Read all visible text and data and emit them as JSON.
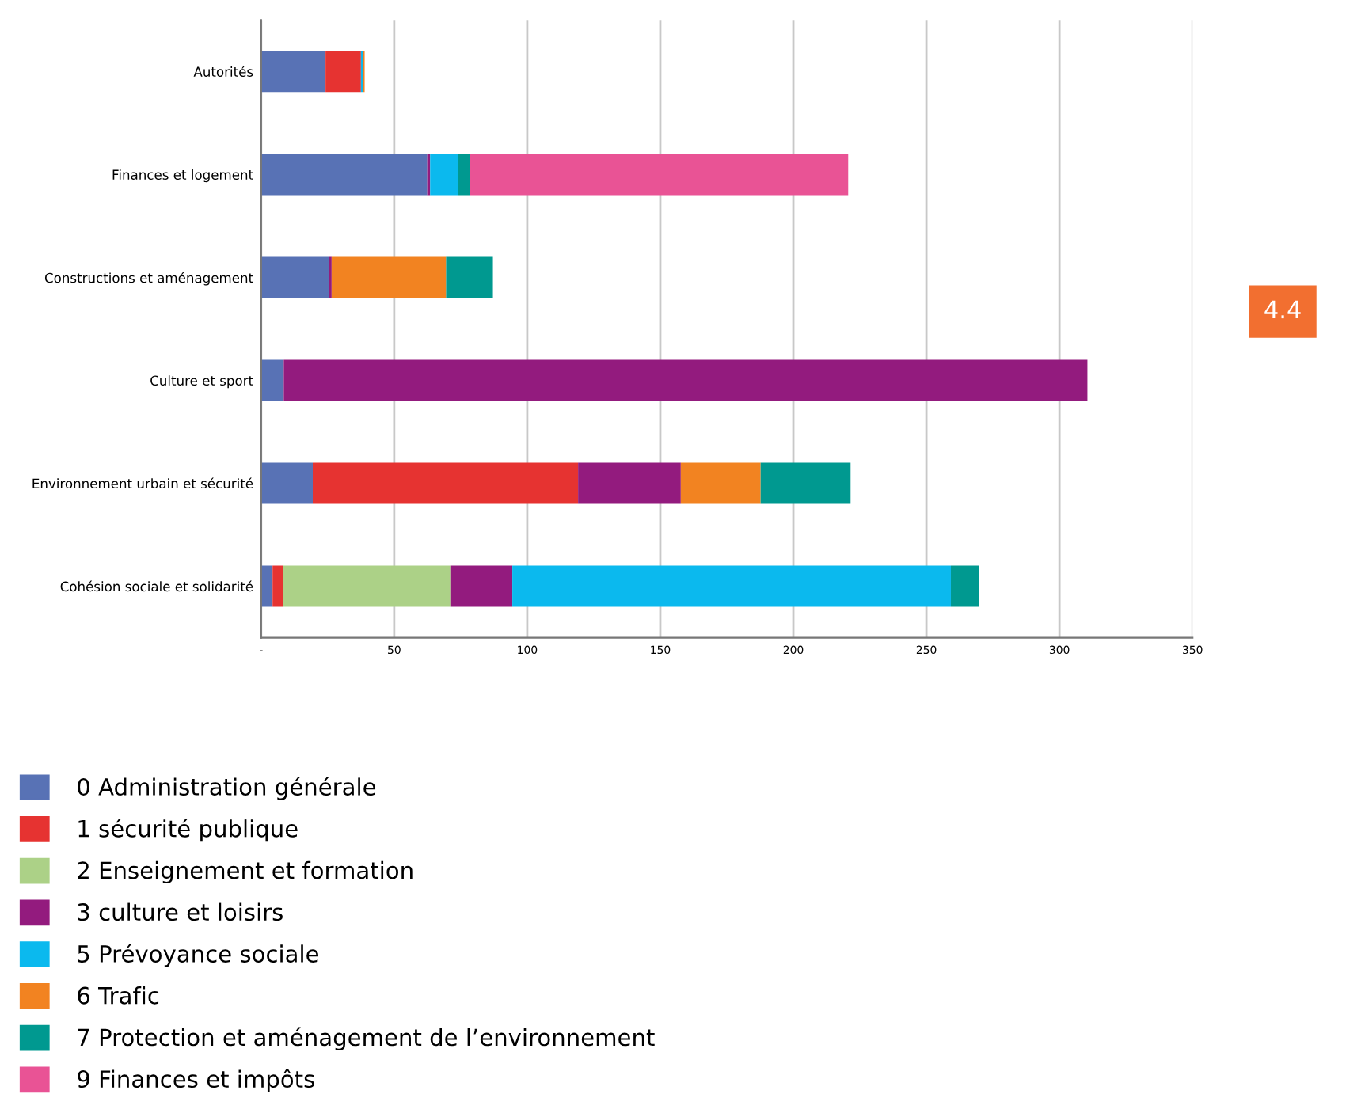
{
  "chart_data": {
    "type": "bar",
    "orientation": "horizontal",
    "stacked": true,
    "categories": [
      "Autorités",
      "Finances et logement",
      "Constructions et aménagement",
      "Culture et sport",
      "Environnement urbain et sécurité",
      "Cohésion sociale et solidarité"
    ],
    "series": [
      {
        "name": "0 Administration générale",
        "color": "#5872b5",
        "values": [
          24.2,
          62.4,
          25.4,
          8.5,
          19.4,
          4.3
        ]
      },
      {
        "name": "1 sécurité publique",
        "color": "#e63331",
        "values": [
          13.3,
          null,
          null,
          null,
          99.7,
          3.9
        ]
      },
      {
        "name": "2 Enseignement et formation",
        "color": "#acd187",
        "values": [
          null,
          null,
          null,
          null,
          null,
          62.9
        ]
      },
      {
        "name": "3 culture et loisirs",
        "color": "#931b7e",
        "values": [
          null,
          1.1,
          1.1,
          302,
          38.6,
          23.3
        ]
      },
      {
        "name": "5 Prévoyance sociale",
        "color": "#0bb9ee",
        "values": [
          0.9,
          10.5,
          null,
          null,
          null,
          164.8
        ]
      },
      {
        "name": "6 Trafic",
        "color": "#f28321",
        "values": [
          0.5,
          null,
          43,
          null,
          30,
          null
        ]
      },
      {
        "name": "7 Protection et aménagement de l’environnement",
        "color": "#009990",
        "values": [
          null,
          4.6,
          17.6,
          null,
          33.8,
          10.7
        ]
      },
      {
        "name": "9 Finances et impôts",
        "color": "#e95395",
        "values": [
          null,
          142,
          null,
          null,
          null,
          null
        ]
      }
    ],
    "xlim": [
      0,
      350
    ],
    "xticks": [
      {
        "value": 0,
        "label": "-"
      },
      50,
      100,
      150,
      200,
      250,
      300,
      350
    ],
    "grid": "x",
    "legend": "bottom left",
    "annotations": [
      "4.4"
    ]
  }
}
